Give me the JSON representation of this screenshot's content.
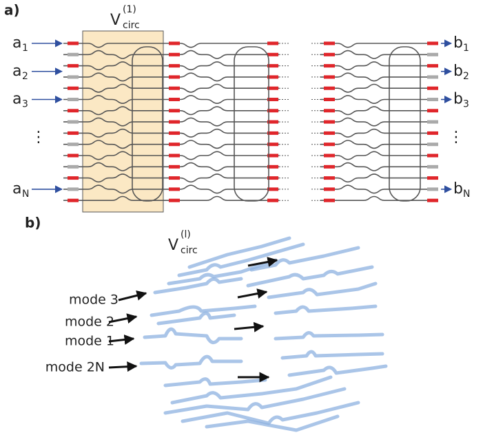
{
  "panel_a": {
    "label": "a)",
    "block_label": {
      "base": "V",
      "sub": "circ",
      "sup": "(1)"
    },
    "inputs": [
      {
        "base": "a",
        "sub": "1"
      },
      {
        "base": "a",
        "sub": "2"
      },
      {
        "base": "a",
        "sub": "3"
      },
      {
        "base": "a",
        "sub": "N"
      }
    ],
    "outputs": [
      {
        "base": "b",
        "sub": "1"
      },
      {
        "base": "b",
        "sub": "2"
      },
      {
        "base": "b",
        "sub": "3"
      },
      {
        "base": "b",
        "sub": "N"
      }
    ],
    "ellipsis": "⋮"
  },
  "panel_b": {
    "label": "b)",
    "block_label": {
      "base": "V",
      "sub": "circ",
      "sup": "(l)"
    },
    "modes": [
      "mode 3",
      "mode 2",
      "mode 1",
      "mode 2N"
    ]
  }
}
